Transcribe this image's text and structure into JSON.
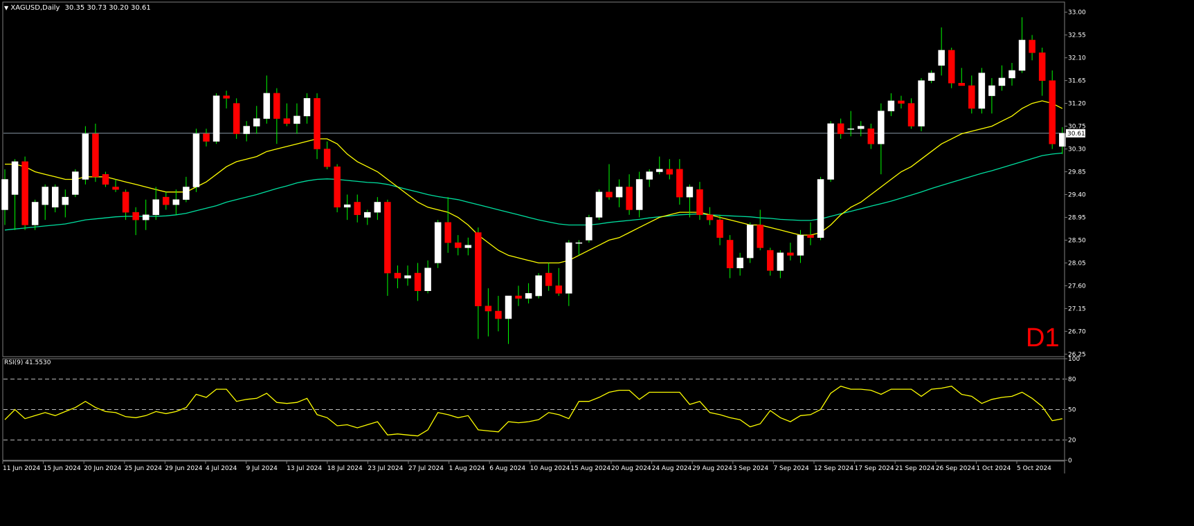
{
  "header": {
    "symbol_label": "XAGUSD,Daily",
    "ohlc_label": "30.35 30.73 30.20 30.61",
    "timeframe_badge": "D1"
  },
  "price_panel": {
    "current_price_label": "30.61",
    "current_price": 30.61,
    "yaxis_ticks": [
      "33.00",
      "32.55",
      "32.10",
      "31.65",
      "31.20",
      "30.75",
      "30.30",
      "29.85",
      "29.40",
      "28.95",
      "28.50",
      "28.05",
      "27.60",
      "27.15",
      "26.70",
      "26.25"
    ],
    "ylim": [
      26.2,
      33.2
    ],
    "colors": {
      "bull": "#ffffff",
      "bear": "#ff0000",
      "ma_fast": "#ffff00",
      "ma_slow": "#00e0a0",
      "price_line": "#8a9aa8"
    }
  },
  "rsi_panel": {
    "label": "RSI(9) 41.5530",
    "yaxis_ticks": [
      "100",
      "80",
      "50",
      "20",
      "0"
    ],
    "levels": [
      80,
      50,
      20
    ],
    "color": "#ffff00"
  },
  "xaxis_labels": [
    "11 Jun 2024",
    "15 Jun 2024",
    "20 Jun 2024",
    "25 Jun 2024",
    "29 Jun 2024",
    "4 Jul 2024",
    "9 Jul 2024",
    "13 Jul 2024",
    "18 Jul 2024",
    "23 Jul 2024",
    "27 Jul 2024",
    "1 Aug 2024",
    "6 Aug 2024",
    "10 Aug 2024",
    "15 Aug 2024",
    "20 Aug 2024",
    "24 Aug 2024",
    "29 Aug 2024",
    "3 Sep 2024",
    "7 Sep 2024",
    "12 Sep 2024",
    "17 Sep 2024",
    "21 Sep 2024",
    "26 Sep 2024",
    "1 Oct 2024",
    "5 Oct 2024"
  ],
  "chart_data": {
    "type": "candlestick",
    "symbol": "XAGUSD",
    "timeframe": "Daily",
    "candles": [
      {
        "o": 29.1,
        "h": 29.9,
        "l": 28.8,
        "c": 29.7
      },
      {
        "o": 29.4,
        "h": 30.1,
        "l": 28.7,
        "c": 30.05
      },
      {
        "o": 30.05,
        "h": 30.15,
        "l": 28.7,
        "c": 28.8
      },
      {
        "o": 28.8,
        "h": 29.3,
        "l": 28.7,
        "c": 29.25
      },
      {
        "o": 29.2,
        "h": 29.6,
        "l": 28.9,
        "c": 29.55
      },
      {
        "o": 29.15,
        "h": 29.6,
        "l": 29.05,
        "c": 29.55
      },
      {
        "o": 29.2,
        "h": 29.5,
        "l": 28.95,
        "c": 29.35
      },
      {
        "o": 29.4,
        "h": 29.9,
        "l": 29.35,
        "c": 29.85
      },
      {
        "o": 29.7,
        "h": 30.75,
        "l": 29.6,
        "c": 30.6
      },
      {
        "o": 30.6,
        "h": 30.8,
        "l": 29.65,
        "c": 29.75
      },
      {
        "o": 29.8,
        "h": 29.85,
        "l": 29.55,
        "c": 29.6
      },
      {
        "o": 29.55,
        "h": 29.7,
        "l": 29.45,
        "c": 29.5
      },
      {
        "o": 29.45,
        "h": 29.5,
        "l": 28.9,
        "c": 29.05
      },
      {
        "o": 29.05,
        "h": 29.15,
        "l": 28.6,
        "c": 28.9
      },
      {
        "o": 28.9,
        "h": 29.3,
        "l": 28.7,
        "c": 29.0
      },
      {
        "o": 29.0,
        "h": 29.55,
        "l": 28.9,
        "c": 29.3
      },
      {
        "o": 29.35,
        "h": 29.45,
        "l": 29.1,
        "c": 29.2
      },
      {
        "o": 29.2,
        "h": 29.5,
        "l": 29.0,
        "c": 29.3
      },
      {
        "o": 29.3,
        "h": 29.75,
        "l": 29.25,
        "c": 29.55
      },
      {
        "o": 29.55,
        "h": 30.7,
        "l": 29.45,
        "c": 30.6
      },
      {
        "o": 30.6,
        "h": 30.7,
        "l": 30.35,
        "c": 30.45
      },
      {
        "o": 30.45,
        "h": 31.4,
        "l": 30.4,
        "c": 31.35
      },
      {
        "o": 31.35,
        "h": 31.45,
        "l": 31.1,
        "c": 31.3
      },
      {
        "o": 31.2,
        "h": 31.3,
        "l": 30.5,
        "c": 30.6
      },
      {
        "o": 30.6,
        "h": 30.85,
        "l": 30.45,
        "c": 30.75
      },
      {
        "o": 30.75,
        "h": 31.15,
        "l": 30.6,
        "c": 30.9
      },
      {
        "o": 30.9,
        "h": 31.75,
        "l": 30.8,
        "c": 31.4
      },
      {
        "o": 31.4,
        "h": 31.5,
        "l": 30.4,
        "c": 30.9
      },
      {
        "o": 30.9,
        "h": 31.2,
        "l": 30.75,
        "c": 30.8
      },
      {
        "o": 30.8,
        "h": 31.2,
        "l": 30.6,
        "c": 30.95
      },
      {
        "o": 30.95,
        "h": 31.4,
        "l": 30.8,
        "c": 31.3
      },
      {
        "o": 31.3,
        "h": 31.4,
        "l": 30.1,
        "c": 30.3
      },
      {
        "o": 30.3,
        "h": 30.45,
        "l": 29.9,
        "c": 29.95
      },
      {
        "o": 29.95,
        "h": 30.0,
        "l": 29.05,
        "c": 29.15
      },
      {
        "o": 29.15,
        "h": 29.4,
        "l": 28.9,
        "c": 29.2
      },
      {
        "o": 29.25,
        "h": 29.4,
        "l": 28.85,
        "c": 29.0
      },
      {
        "o": 28.95,
        "h": 29.1,
        "l": 28.8,
        "c": 29.05
      },
      {
        "o": 29.05,
        "h": 29.35,
        "l": 28.9,
        "c": 29.25
      },
      {
        "o": 29.25,
        "h": 29.3,
        "l": 27.4,
        "c": 27.85
      },
      {
        "o": 27.85,
        "h": 28.0,
        "l": 27.55,
        "c": 27.75
      },
      {
        "o": 27.75,
        "h": 28.0,
        "l": 27.6,
        "c": 27.8
      },
      {
        "o": 27.85,
        "h": 28.05,
        "l": 27.3,
        "c": 27.5
      },
      {
        "o": 27.5,
        "h": 28.1,
        "l": 27.45,
        "c": 27.95
      },
      {
        "o": 28.05,
        "h": 28.9,
        "l": 27.95,
        "c": 28.85
      },
      {
        "o": 28.85,
        "h": 29.35,
        "l": 28.25,
        "c": 28.45
      },
      {
        "o": 28.45,
        "h": 28.6,
        "l": 28.2,
        "c": 28.35
      },
      {
        "o": 28.35,
        "h": 28.55,
        "l": 28.2,
        "c": 28.4
      },
      {
        "o": 28.65,
        "h": 28.75,
        "l": 26.55,
        "c": 27.2
      },
      {
        "o": 27.2,
        "h": 27.55,
        "l": 26.6,
        "c": 27.1
      },
      {
        "o": 27.1,
        "h": 27.4,
        "l": 26.7,
        "c": 26.95
      },
      {
        "o": 26.95,
        "h": 27.4,
        "l": 26.45,
        "c": 27.4
      },
      {
        "o": 27.4,
        "h": 27.6,
        "l": 27.2,
        "c": 27.35
      },
      {
        "o": 27.35,
        "h": 27.65,
        "l": 27.25,
        "c": 27.45
      },
      {
        "o": 27.4,
        "h": 27.85,
        "l": 27.35,
        "c": 27.8
      },
      {
        "o": 27.85,
        "h": 28.05,
        "l": 27.5,
        "c": 27.6
      },
      {
        "o": 27.6,
        "h": 27.95,
        "l": 27.4,
        "c": 27.45
      },
      {
        "o": 27.45,
        "h": 28.5,
        "l": 27.2,
        "c": 28.45
      },
      {
        "o": 28.45,
        "h": 28.5,
        "l": 28.2,
        "c": 28.45
      },
      {
        "o": 28.5,
        "h": 29.0,
        "l": 28.45,
        "c": 28.95
      },
      {
        "o": 28.95,
        "h": 29.5,
        "l": 28.9,
        "c": 29.45
      },
      {
        "o": 29.45,
        "h": 30.0,
        "l": 29.3,
        "c": 29.35
      },
      {
        "o": 29.35,
        "h": 29.7,
        "l": 29.15,
        "c": 29.55
      },
      {
        "o": 29.55,
        "h": 29.8,
        "l": 29.0,
        "c": 29.1
      },
      {
        "o": 29.1,
        "h": 29.85,
        "l": 28.95,
        "c": 29.7
      },
      {
        "o": 29.7,
        "h": 29.9,
        "l": 29.55,
        "c": 29.85
      },
      {
        "o": 29.85,
        "h": 30.15,
        "l": 29.8,
        "c": 29.9
      },
      {
        "o": 29.9,
        "h": 30.1,
        "l": 29.7,
        "c": 29.8
      },
      {
        "o": 29.9,
        "h": 30.1,
        "l": 29.2,
        "c": 29.35
      },
      {
        "o": 29.35,
        "h": 29.6,
        "l": 28.95,
        "c": 29.55
      },
      {
        "o": 29.5,
        "h": 29.65,
        "l": 28.9,
        "c": 29.0
      },
      {
        "o": 29.0,
        "h": 29.15,
        "l": 28.8,
        "c": 28.9
      },
      {
        "o": 28.9,
        "h": 29.0,
        "l": 28.4,
        "c": 28.55
      },
      {
        "o": 28.5,
        "h": 28.6,
        "l": 27.75,
        "c": 27.95
      },
      {
        "o": 27.95,
        "h": 28.25,
        "l": 27.8,
        "c": 28.15
      },
      {
        "o": 28.15,
        "h": 28.85,
        "l": 28.05,
        "c": 28.8
      },
      {
        "o": 28.8,
        "h": 29.1,
        "l": 28.3,
        "c": 28.35
      },
      {
        "o": 28.3,
        "h": 28.35,
        "l": 27.8,
        "c": 27.9
      },
      {
        "o": 27.9,
        "h": 28.3,
        "l": 27.75,
        "c": 28.25
      },
      {
        "o": 28.25,
        "h": 28.45,
        "l": 28.1,
        "c": 28.2
      },
      {
        "o": 28.2,
        "h": 28.7,
        "l": 28.05,
        "c": 28.6
      },
      {
        "o": 28.6,
        "h": 28.85,
        "l": 28.4,
        "c": 28.55
      },
      {
        "o": 28.55,
        "h": 29.75,
        "l": 28.5,
        "c": 29.7
      },
      {
        "o": 29.7,
        "h": 30.85,
        "l": 29.65,
        "c": 30.8
      },
      {
        "o": 30.8,
        "h": 30.9,
        "l": 30.5,
        "c": 30.6
      },
      {
        "o": 30.7,
        "h": 31.05,
        "l": 30.55,
        "c": 30.7
      },
      {
        "o": 30.7,
        "h": 30.85,
        "l": 30.55,
        "c": 30.75
      },
      {
        "o": 30.7,
        "h": 30.8,
        "l": 30.3,
        "c": 30.4
      },
      {
        "o": 30.4,
        "h": 31.2,
        "l": 29.8,
        "c": 31.05
      },
      {
        "o": 31.05,
        "h": 31.4,
        "l": 30.95,
        "c": 31.25
      },
      {
        "o": 31.25,
        "h": 31.35,
        "l": 31.1,
        "c": 31.2
      },
      {
        "o": 31.2,
        "h": 31.3,
        "l": 30.7,
        "c": 30.75
      },
      {
        "o": 30.75,
        "h": 31.7,
        "l": 30.65,
        "c": 31.65
      },
      {
        "o": 31.65,
        "h": 31.85,
        "l": 31.6,
        "c": 31.8
      },
      {
        "o": 31.95,
        "h": 32.7,
        "l": 31.75,
        "c": 32.25
      },
      {
        "o": 32.25,
        "h": 32.3,
        "l": 31.5,
        "c": 31.6
      },
      {
        "o": 31.6,
        "h": 31.9,
        "l": 31.55,
        "c": 31.55
      },
      {
        "o": 31.55,
        "h": 31.75,
        "l": 31.0,
        "c": 31.1
      },
      {
        "o": 31.1,
        "h": 31.9,
        "l": 31.0,
        "c": 31.8
      },
      {
        "o": 31.35,
        "h": 31.7,
        "l": 31.0,
        "c": 31.55
      },
      {
        "o": 31.55,
        "h": 31.95,
        "l": 31.45,
        "c": 31.7
      },
      {
        "o": 31.7,
        "h": 32.0,
        "l": 31.55,
        "c": 31.85
      },
      {
        "o": 31.85,
        "h": 32.9,
        "l": 31.8,
        "c": 32.45
      },
      {
        "o": 32.45,
        "h": 32.55,
        "l": 32.05,
        "c": 32.2
      },
      {
        "o": 32.2,
        "h": 32.3,
        "l": 31.35,
        "c": 31.65
      },
      {
        "o": 31.65,
        "h": 31.85,
        "l": 30.3,
        "c": 30.4
      },
      {
        "o": 30.35,
        "h": 30.73,
        "l": 30.2,
        "c": 30.61
      }
    ],
    "ma_fast": [
      30.0,
      30.0,
      29.95,
      29.85,
      29.8,
      29.75,
      29.7,
      29.7,
      29.75,
      29.75,
      29.75,
      29.7,
      29.65,
      29.6,
      29.55,
      29.5,
      29.45,
      29.45,
      29.45,
      29.55,
      29.65,
      29.8,
      29.95,
      30.05,
      30.1,
      30.15,
      30.25,
      30.3,
      30.35,
      30.4,
      30.45,
      30.5,
      30.5,
      30.4,
      30.2,
      30.05,
      29.95,
      29.85,
      29.7,
      29.55,
      29.4,
      29.25,
      29.15,
      29.1,
      29.05,
      28.95,
      28.8,
      28.6,
      28.45,
      28.3,
      28.2,
      28.15,
      28.1,
      28.05,
      28.05,
      28.05,
      28.1,
      28.2,
      28.3,
      28.4,
      28.5,
      28.55,
      28.65,
      28.75,
      28.85,
      28.95,
      29.0,
      29.05,
      29.05,
      29.05,
      29.0,
      28.95,
      28.9,
      28.85,
      28.8,
      28.8,
      28.75,
      28.7,
      28.65,
      28.6,
      28.6,
      28.65,
      28.8,
      29.0,
      29.15,
      29.25,
      29.4,
      29.55,
      29.7,
      29.85,
      29.95,
      30.1,
      30.25,
      30.4,
      30.5,
      30.6,
      30.65,
      30.7,
      30.75,
      30.85,
      30.95,
      31.1,
      31.2,
      31.25,
      31.2,
      31.1
    ],
    "ma_slow": [
      28.7,
      28.72,
      28.74,
      28.76,
      28.78,
      28.8,
      28.82,
      28.86,
      28.9,
      28.92,
      28.94,
      28.96,
      28.97,
      28.97,
      28.97,
      28.97,
      28.98,
      29.0,
      29.03,
      29.08,
      29.13,
      29.18,
      29.25,
      29.3,
      29.35,
      29.4,
      29.46,
      29.52,
      29.57,
      29.63,
      29.67,
      29.7,
      29.71,
      29.7,
      29.68,
      29.66,
      29.64,
      29.63,
      29.6,
      29.55,
      29.5,
      29.45,
      29.4,
      29.36,
      29.33,
      29.3,
      29.25,
      29.2,
      29.15,
      29.1,
      29.05,
      29.0,
      28.95,
      28.9,
      28.86,
      28.82,
      28.8,
      28.8,
      28.8,
      28.82,
      28.85,
      28.87,
      28.89,
      28.91,
      28.94,
      28.96,
      28.98,
      29.0,
      29.01,
      29.02,
      29.0,
      28.99,
      28.98,
      28.97,
      28.96,
      28.94,
      28.93,
      28.91,
      28.9,
      28.89,
      28.89,
      28.92,
      28.97,
      29.02,
      29.07,
      29.12,
      29.17,
      29.22,
      29.27,
      29.33,
      29.39,
      29.45,
      29.52,
      29.58,
      29.64,
      29.7,
      29.76,
      29.82,
      29.87,
      29.93,
      29.99,
      30.05,
      30.11,
      30.17,
      30.2,
      30.22
    ],
    "rsi": [
      40,
      50,
      41,
      44,
      47,
      44,
      48,
      52,
      58,
      52,
      48,
      47,
      43,
      42,
      44,
      48,
      46,
      48,
      52,
      65,
      62,
      70,
      70,
      58,
      60,
      61,
      66,
      57,
      56,
      57,
      61,
      45,
      42,
      34,
      35,
      32,
      35,
      38,
      25,
      26,
      25,
      24,
      30,
      47,
      45,
      42,
      44,
      30,
      29,
      28,
      38,
      37,
      38,
      40,
      47,
      45,
      41,
      58,
      58,
      62,
      67,
      69,
      69,
      60,
      67,
      67,
      67,
      67,
      55,
      58,
      47,
      45,
      42,
      40,
      33,
      36,
      49,
      42,
      38,
      44,
      45,
      50,
      66,
      73,
      70,
      70,
      69,
      65,
      70,
      70,
      70,
      63,
      70,
      71,
      73,
      65,
      63,
      56,
      60,
      62,
      63,
      67,
      61,
      53,
      39,
      41
    ]
  }
}
